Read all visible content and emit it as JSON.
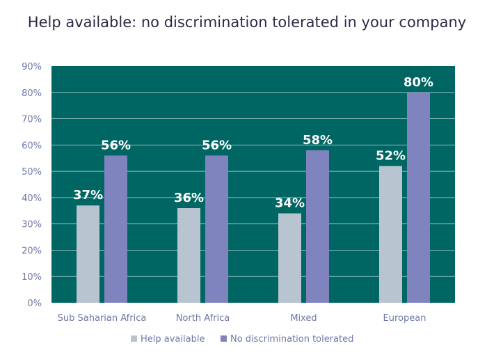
{
  "chart_data": {
    "type": "bar",
    "title": "Help available: no discrimination tolerated in your company",
    "categories": [
      "Sub Saharian Africa",
      "North Africa",
      "Mixed",
      "European"
    ],
    "series": [
      {
        "name": "Help available",
        "values": [
          37,
          36,
          34,
          52
        ],
        "labels": [
          "37%",
          "36%",
          "34%",
          "52%"
        ],
        "color": "#b8c4d0"
      },
      {
        "name": "No discrimination tolerated",
        "values": [
          56,
          56,
          58,
          80
        ],
        "labels": [
          "56%",
          "56%",
          "58%",
          "80%"
        ],
        "color": "#8084be"
      }
    ],
    "ylim": [
      0,
      90
    ],
    "yticks": [
      0,
      10,
      20,
      30,
      40,
      50,
      60,
      70,
      80,
      90
    ],
    "ytick_labels": [
      "0%",
      "10%",
      "20%",
      "30%",
      "40%",
      "50%",
      "60%",
      "70%",
      "80%",
      "90%"
    ],
    "xlabel": "",
    "ylabel": "",
    "grid": true,
    "legend_position": "bottom",
    "plot_background": "#006663"
  }
}
